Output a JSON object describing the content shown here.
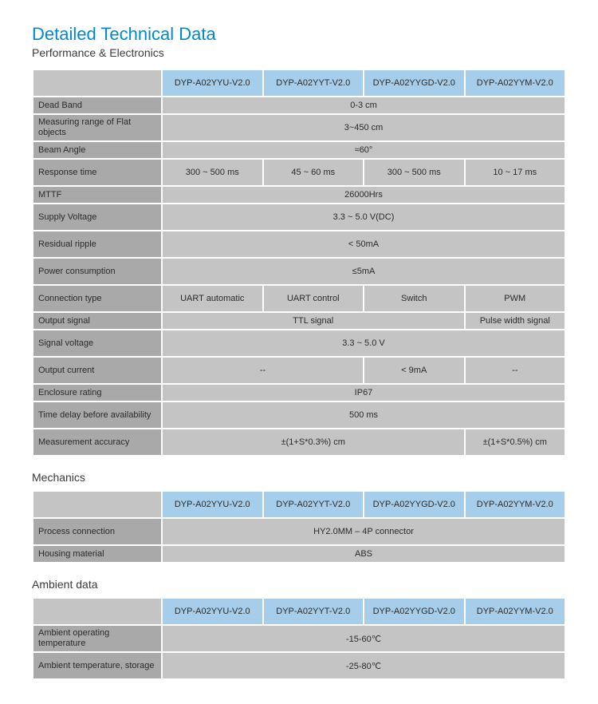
{
  "title": "Detailed Technical Data",
  "subtitle": "Performance & Electronics",
  "models": [
    "DYP-A02YYU-V2.0",
    "DYP-A02YYT-V2.0",
    "DYP-A02YYGD-V2.0",
    "DYP-A02YYM-V2.0"
  ],
  "perf": {
    "deadBand": {
      "label": "Dead Band",
      "value": "0-3 cm"
    },
    "measRange": {
      "label": "Measuring range of Flat objects",
      "value": "3~450 cm"
    },
    "beamAngle": {
      "label": "Beam Angle",
      "value": "≈60°"
    },
    "response": {
      "label": "Response time",
      "v": [
        "300 ~ 500 ms",
        "45 ~ 60 ms",
        "300 ~ 500 ms",
        "10 ~ 17 ms"
      ]
    },
    "mttf": {
      "label": "MTTF",
      "value": "26000Hrs"
    },
    "supply": {
      "label": "Supply Voltage",
      "value": "3.3 ~ 5.0 V(DC)"
    },
    "ripple": {
      "label": "Residual ripple",
      "value": "< 50mA"
    },
    "power": {
      "label": "Power consumption",
      "value": "≤5mA"
    },
    "conn": {
      "label": "Connection type",
      "v": [
        "UART automatic",
        "UART control",
        "Switch",
        "PWM"
      ]
    },
    "outSignal": {
      "label": "Output signal",
      "left": "TTL signal",
      "right": "Pulse width signal"
    },
    "sigVolt": {
      "label": "Signal voltage",
      "value": "3.3 ~ 5.0 V"
    },
    "outCurrent": {
      "label": "Output current",
      "left": "--",
      "mid": "< 9mA",
      "right": "--"
    },
    "enclosure": {
      "label": "Enclosure rating",
      "value": "IP67"
    },
    "delay": {
      "label": "Time delay before availability",
      "value": "500 ms"
    },
    "accuracy": {
      "label": "Measurement accuracy",
      "left": "±(1+S*0.3%) cm",
      "right": "±(1+S*0.5%) cm"
    }
  },
  "mechLabel": "Mechanics",
  "mech": {
    "process": {
      "label": "Process connection",
      "value": "HY2.0MM – 4P connector"
    },
    "housing": {
      "label": "Housing material",
      "value": "ABS"
    }
  },
  "ambientLabel": "Ambient data",
  "ambient": {
    "operating": {
      "label": "Ambient operating temperature",
      "value": "-15-60℃"
    },
    "storage": {
      "label": "Ambient temperature, storage",
      "value": "-25-80℃"
    }
  },
  "colors": {
    "title": "#0089cc",
    "headerBlue": "#a6cde9",
    "rowLabel": "#a9a9a9",
    "dataCell": "#c4c4c4",
    "text": "#2b2b2b",
    "background": "#ffffff"
  }
}
